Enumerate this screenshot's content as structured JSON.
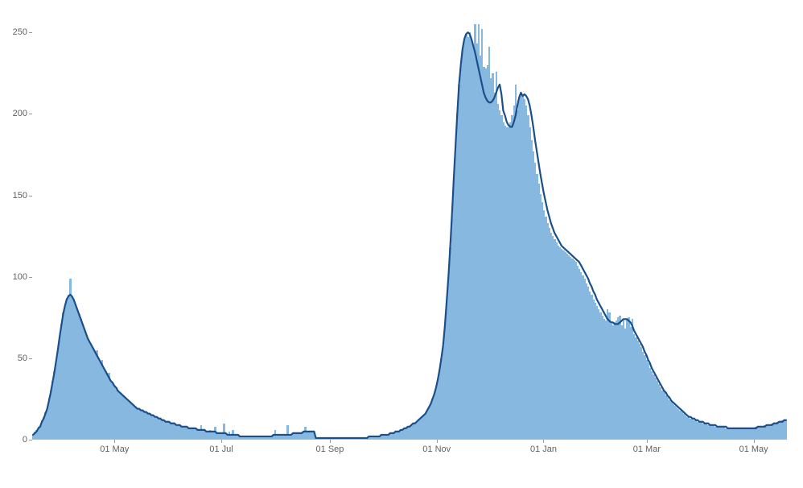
{
  "chart": {
    "type": "bar+line",
    "background_color": "#ffffff",
    "bar_color": "#87b8e0",
    "line_color": "#1b4f8a",
    "line_width": 2.2,
    "axis_color": "#9a9a9a",
    "label_color": "#616161",
    "label_fontsize": 11,
    "yaxis": {
      "min": 0,
      "max": 260,
      "ticks": [
        0,
        50,
        100,
        150,
        200,
        250
      ],
      "tick_labels": [
        "0",
        "50",
        "100",
        "150",
        "200",
        "250"
      ]
    },
    "xaxis": {
      "start": "2020-03-15",
      "end": "2021-05-20",
      "ticks": [
        "2020-05-01",
        "2020-07-01",
        "2020-09-01",
        "2020-11-01",
        "2021-01-01",
        "2021-03-01",
        "2021-05-01"
      ],
      "tick_labels": [
        "01 May",
        "01 Jul",
        "01 Sep",
        "01 Nov",
        "01 Jan",
        "01 Mar",
        "01 May"
      ]
    },
    "bars": [
      3,
      5,
      6,
      8,
      9,
      12,
      14,
      17,
      20,
      25,
      30,
      36,
      42,
      49,
      56,
      64,
      71,
      78,
      83,
      87,
      89,
      99,
      88,
      86,
      83,
      80,
      77,
      74,
      71,
      68,
      65,
      62,
      60,
      58,
      56,
      54,
      55,
      50,
      48,
      49,
      44,
      42,
      40,
      41,
      36,
      35,
      33,
      32,
      30,
      29,
      28,
      27,
      26,
      25,
      24,
      23,
      22,
      21,
      20,
      19,
      19,
      18,
      18,
      17,
      17,
      16,
      16,
      15,
      15,
      14,
      14,
      13,
      13,
      12,
      12,
      11,
      11,
      11,
      10,
      10,
      10,
      9,
      9,
      9,
      8,
      8,
      8,
      8,
      7,
      7,
      7,
      7,
      7,
      6,
      6,
      9,
      6,
      6,
      5,
      5,
      6,
      5,
      5,
      8,
      4,
      4,
      4,
      4,
      10,
      4,
      3,
      5,
      3,
      6,
      3,
      3,
      3,
      2,
      2,
      2,
      2,
      2,
      2,
      2,
      2,
      2,
      2,
      2,
      2,
      2,
      2,
      2,
      2,
      2,
      2,
      2,
      3,
      6,
      3,
      3,
      3,
      3,
      3,
      3,
      9,
      3,
      3,
      4,
      4,
      4,
      4,
      4,
      4,
      5,
      8,
      5,
      5,
      5,
      5,
      5,
      1,
      1,
      1,
      1,
      1,
      1,
      1,
      1,
      1,
      1,
      1,
      1,
      1,
      1,
      1,
      1,
      1,
      1,
      1,
      1,
      1,
      1,
      1,
      1,
      1,
      1,
      1,
      1,
      1,
      1,
      2,
      2,
      2,
      2,
      2,
      2,
      2,
      3,
      3,
      3,
      3,
      3,
      4,
      4,
      4,
      5,
      5,
      5,
      6,
      6,
      7,
      7,
      8,
      8,
      9,
      10,
      10,
      11,
      12,
      13,
      14,
      15,
      16,
      18,
      20,
      22,
      25,
      28,
      32,
      37,
      43,
      50,
      58,
      70,
      85,
      100,
      118,
      138,
      160,
      180,
      200,
      218,
      230,
      240,
      246,
      249,
      247,
      250,
      246,
      242,
      255,
      243,
      255,
      236,
      252,
      229,
      228,
      230,
      241,
      222,
      225,
      213,
      226,
      206,
      202,
      199,
      195,
      193,
      192,
      192,
      195,
      199,
      205,
      218,
      202,
      210,
      212,
      211,
      209,
      205,
      199,
      192,
      184,
      177,
      170,
      163,
      157,
      151,
      146,
      141,
      137,
      133,
      130,
      127,
      125,
      123,
      121,
      119,
      118,
      117,
      116,
      115,
      114,
      113,
      112,
      111,
      110,
      109,
      107,
      105,
      103,
      101,
      99,
      96,
      94,
      91,
      89,
      86,
      84,
      82,
      80,
      78,
      76,
      74,
      73,
      80,
      78,
      71,
      70,
      72,
      73,
      75,
      76,
      70,
      73,
      68,
      74,
      75,
      69,
      74,
      65,
      63,
      61,
      59,
      57,
      54,
      52,
      49,
      47,
      44,
      42,
      40,
      38,
      36,
      34,
      32,
      30,
      29,
      27,
      26,
      24,
      23,
      22,
      21,
      20,
      19,
      18,
      17,
      16,
      15,
      14,
      14,
      13,
      13,
      12,
      12,
      11,
      11,
      11,
      10,
      10,
      10,
      9,
      9,
      9,
      9,
      8,
      8,
      8,
      8,
      8,
      8,
      7,
      7,
      7,
      7,
      7,
      7,
      7,
      7,
      7,
      7,
      7,
      7,
      7,
      7,
      7,
      7,
      7,
      8,
      8,
      8,
      8,
      8,
      9,
      9,
      9,
      9,
      10,
      10,
      10,
      11,
      11,
      11,
      12,
      12,
      12
    ],
    "smoothed": [
      3,
      4,
      5,
      7,
      8,
      11,
      13,
      16,
      19,
      24,
      29,
      35,
      41,
      48,
      55,
      63,
      70,
      77,
      82,
      86,
      88,
      89,
      88,
      86,
      83,
      80,
      77,
      74,
      71,
      68,
      65,
      62,
      60,
      58,
      56,
      54,
      52,
      50,
      48,
      46,
      44,
      42,
      40,
      38,
      36,
      35,
      33,
      32,
      30,
      29,
      28,
      27,
      26,
      25,
      24,
      23,
      22,
      21,
      20,
      19,
      19,
      18,
      18,
      17,
      17,
      16,
      16,
      15,
      15,
      14,
      14,
      13,
      13,
      12,
      12,
      11,
      11,
      11,
      10,
      10,
      10,
      9,
      9,
      9,
      8,
      8,
      8,
      8,
      7,
      7,
      7,
      7,
      7,
      6,
      6,
      6,
      6,
      6,
      5,
      5,
      5,
      5,
      5,
      5,
      4,
      4,
      4,
      4,
      4,
      4,
      3,
      3,
      3,
      3,
      3,
      3,
      3,
      2,
      2,
      2,
      2,
      2,
      2,
      2,
      2,
      2,
      2,
      2,
      2,
      2,
      2,
      2,
      2,
      2,
      2,
      2,
      3,
      3,
      3,
      3,
      3,
      3,
      3,
      3,
      3,
      3,
      3,
      4,
      4,
      4,
      4,
      4,
      4,
      5,
      5,
      5,
      5,
      5,
      5,
      5,
      1,
      1,
      1,
      1,
      1,
      1,
      1,
      1,
      1,
      1,
      1,
      1,
      1,
      1,
      1,
      1,
      1,
      1,
      1,
      1,
      1,
      1,
      1,
      1,
      1,
      1,
      1,
      1,
      1,
      1,
      2,
      2,
      2,
      2,
      2,
      2,
      2,
      3,
      3,
      3,
      3,
      3,
      4,
      4,
      4,
      5,
      5,
      5,
      6,
      6,
      7,
      7,
      8,
      8,
      9,
      10,
      10,
      11,
      12,
      13,
      14,
      15,
      16,
      18,
      20,
      22,
      25,
      28,
      32,
      37,
      43,
      50,
      58,
      70,
      85,
      100,
      118,
      138,
      160,
      180,
      200,
      218,
      230,
      240,
      246,
      249,
      250,
      249,
      246,
      242,
      238,
      233,
      228,
      223,
      218,
      213,
      210,
      208,
      207,
      207,
      208,
      210,
      213,
      216,
      218,
      212,
      202,
      199,
      195,
      193,
      192,
      192,
      195,
      199,
      205,
      210,
      213,
      211,
      212,
      211,
      209,
      205,
      199,
      192,
      184,
      177,
      170,
      163,
      157,
      151,
      146,
      141,
      137,
      133,
      130,
      127,
      125,
      123,
      121,
      119,
      118,
      117,
      116,
      115,
      114,
      113,
      112,
      111,
      110,
      109,
      107,
      105,
      103,
      101,
      99,
      96,
      94,
      91,
      89,
      86,
      84,
      82,
      80,
      78,
      76,
      74,
      73,
      72,
      72,
      71,
      71,
      71,
      72,
      73,
      74,
      74,
      74,
      73,
      72,
      70,
      67,
      65,
      63,
      61,
      59,
      57,
      54,
      52,
      49,
      47,
      44,
      42,
      40,
      38,
      36,
      34,
      32,
      30,
      29,
      27,
      26,
      24,
      23,
      22,
      21,
      20,
      19,
      18,
      17,
      16,
      15,
      14,
      14,
      13,
      13,
      12,
      12,
      11,
      11,
      11,
      10,
      10,
      10,
      9,
      9,
      9,
      9,
      8,
      8,
      8,
      8,
      8,
      8,
      7,
      7,
      7,
      7,
      7,
      7,
      7,
      7,
      7,
      7,
      7,
      7,
      7,
      7,
      7,
      7,
      7,
      8,
      8,
      8,
      8,
      8,
      9,
      9,
      9,
      9,
      10,
      10,
      10,
      11,
      11,
      11,
      12,
      12
    ]
  }
}
